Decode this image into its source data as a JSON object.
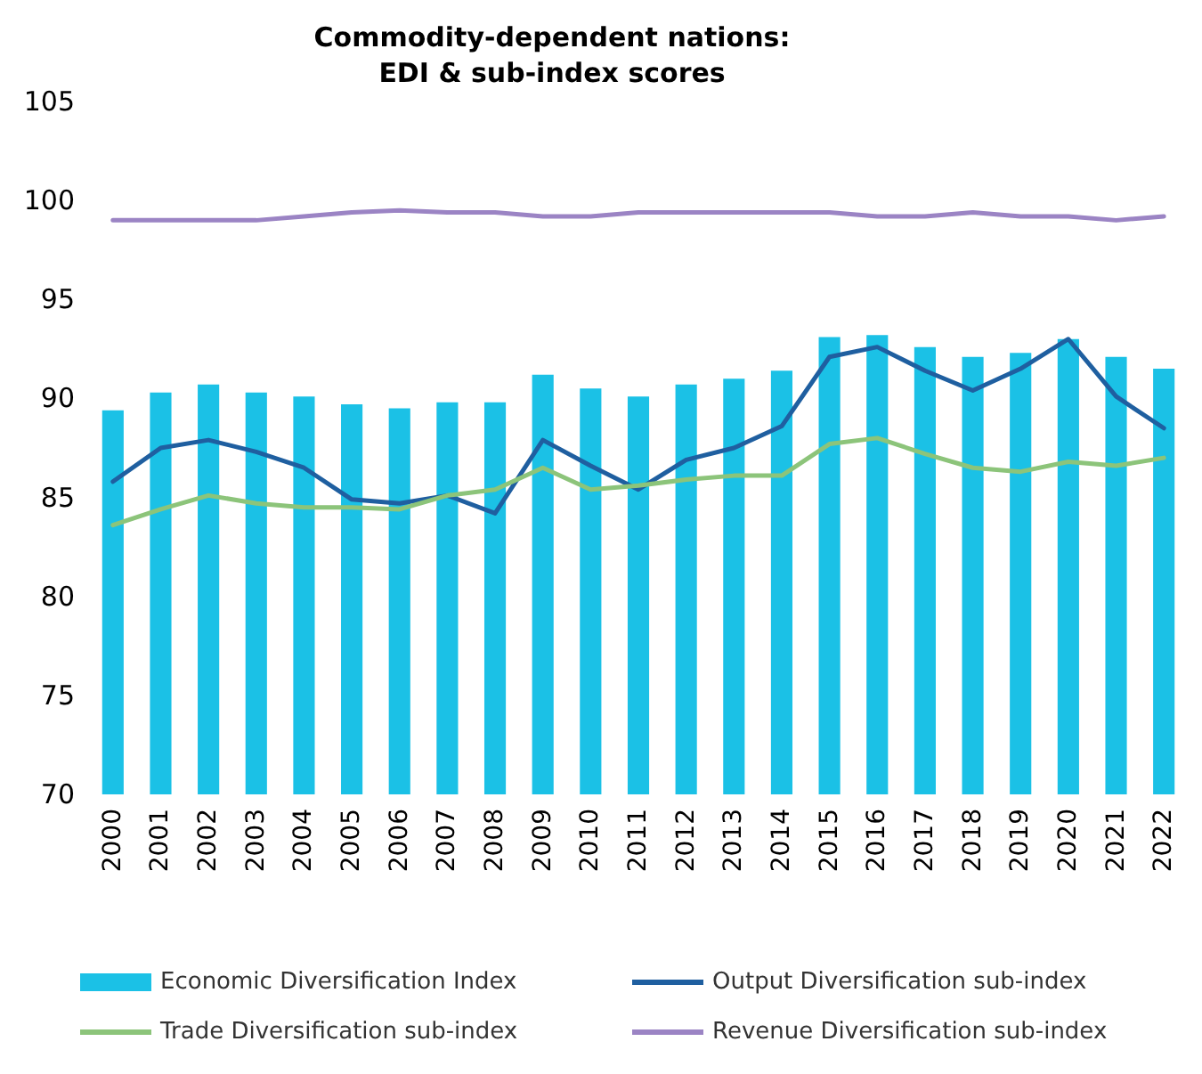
{
  "chart_data": {
    "type": "bar",
    "title": "Commodity-dependent nations:\nEDI & sub-index scores",
    "categories": [
      "2000",
      "2001",
      "2002",
      "2003",
      "2004",
      "2005",
      "2006",
      "2007",
      "2008",
      "2009",
      "2010",
      "2011",
      "2012",
      "2013",
      "2014",
      "2015",
      "2016",
      "2017",
      "2018",
      "2019",
      "2020",
      "2021",
      "2022"
    ],
    "series": [
      {
        "name": "Economic Diversification Index",
        "color": "#1bc1e6",
        "values": [
          89.4,
          90.3,
          90.7,
          90.3,
          90.1,
          89.7,
          89.5,
          89.8,
          89.8,
          91.2,
          90.5,
          90.1,
          90.7,
          91.0,
          91.4,
          93.1,
          93.2,
          92.6,
          92.1,
          92.3,
          93.0,
          92.1,
          91.5
        ]
      },
      {
        "name": "Output Diversification sub-index",
        "type": "line",
        "color": "#1f5fa0",
        "values": [
          85.8,
          87.5,
          87.9,
          87.3,
          86.5,
          84.9,
          84.7,
          85.1,
          84.2,
          87.9,
          86.6,
          85.4,
          86.9,
          87.5,
          88.6,
          92.1,
          92.6,
          91.4,
          90.4,
          91.5,
          93.0,
          90.1,
          88.5
        ]
      },
      {
        "name": "Trade Diversification sub-index",
        "type": "line",
        "color": "#8cc47a",
        "values": [
          83.6,
          84.4,
          85.1,
          84.7,
          84.5,
          84.5,
          84.4,
          85.1,
          85.4,
          86.5,
          85.4,
          85.6,
          85.9,
          86.1,
          86.1,
          87.7,
          88.0,
          87.2,
          86.5,
          86.3,
          86.8,
          86.6,
          87.0
        ]
      },
      {
        "name": "Revenue Diversification sub-index",
        "type": "line",
        "color": "#9b84c4",
        "values": [
          99.0,
          99.0,
          99.0,
          99.0,
          99.2,
          99.4,
          99.5,
          99.4,
          99.4,
          99.2,
          99.2,
          99.4,
          99.4,
          99.4,
          99.4,
          99.4,
          99.2,
          99.2,
          99.4,
          99.2,
          99.2,
          99.0,
          99.2
        ]
      }
    ],
    "ylim": [
      70,
      105
    ],
    "yticks": [
      70,
      75,
      80,
      85,
      90,
      95,
      100,
      105
    ],
    "grid": false,
    "legend": "bottom",
    "marker": "none"
  }
}
